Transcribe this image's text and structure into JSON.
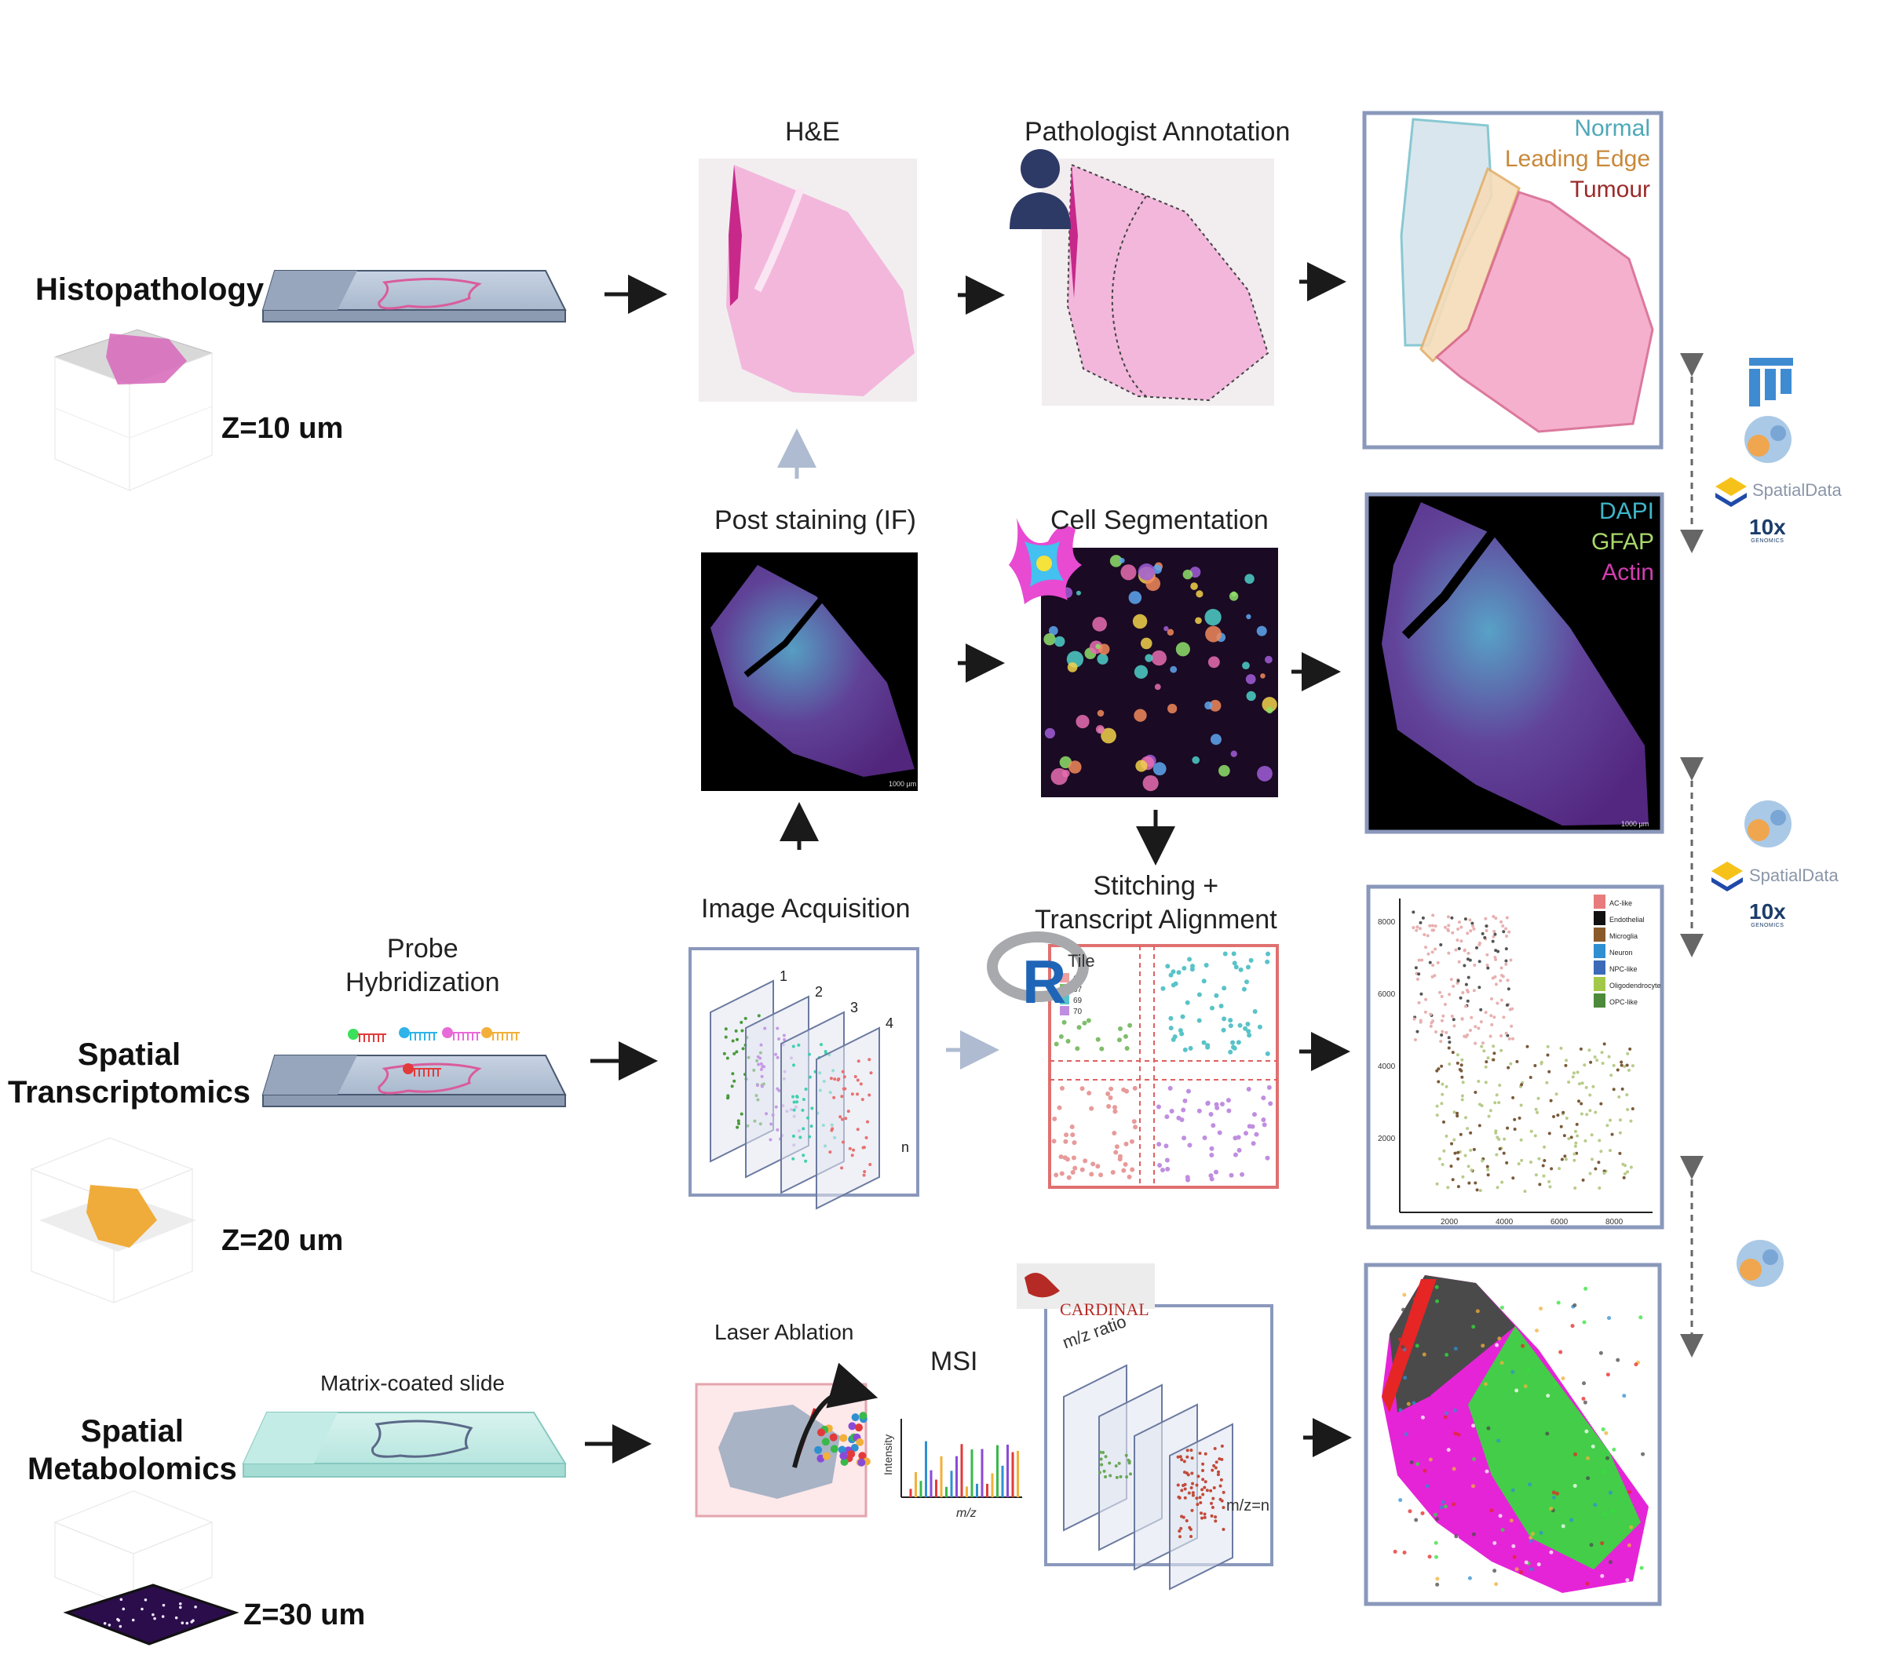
{
  "rows": {
    "histopathology": "Histopathology",
    "transcriptomics": "Spatial\nTranscriptomics",
    "metabolomics": "Spatial\nMetabolomics"
  },
  "z": {
    "histo": "Z=10 um",
    "trans": "Z=20 um",
    "metab": "Z=30 um"
  },
  "steps": {
    "he": "H&E",
    "pathologist": "Pathologist Annotation",
    "post_staining": "Post staining (IF)",
    "cell_seg": "Cell Segmentation",
    "probe": "Probe\nHybridization",
    "image_acq": "Image Acquisition",
    "stitching": "Stitching +\nTranscript Alignment",
    "matrix": "Matrix-coated slide",
    "laser": "Laser Ablation",
    "msi": "MSI"
  },
  "legend_histo": [
    {
      "text": "Normal",
      "color": "#4fa8b8"
    },
    {
      "text": "Leading Edge",
      "color": "#c8883a"
    },
    {
      "text": "Tumour",
      "color": "#9b2a2a"
    }
  ],
  "legend_if": [
    {
      "text": "DAPI",
      "color": "#3fb6c9"
    },
    {
      "text": "GFAP",
      "color": "#a8d86a"
    },
    {
      "text": "Actin",
      "color": "#d23fb0"
    }
  ],
  "acq_layers": [
    "1",
    "2",
    "3",
    "4",
    "n"
  ],
  "stitch_tile": {
    "title": "Tile",
    "items": [
      "66",
      "67",
      "69",
      "70"
    ]
  },
  "celltype_legend": [
    "AC-like",
    "Endothelial",
    "Microglia",
    "Neuron",
    "NPC-like",
    "Oligodendrocyte",
    "OPC-like"
  ],
  "celltype_colors": [
    "#e87c7c",
    "#111111",
    "#8b5a2b",
    "#2f8fd1",
    "#3a6ab8",
    "#a2c84a",
    "#4d8a3a"
  ],
  "celltype_axes": {
    "y_ticks": [
      "8000",
      "6000",
      "4000",
      "2000"
    ],
    "x_ticks": [
      "2000",
      "4000",
      "6000",
      "8000"
    ]
  },
  "msi_axes": {
    "x": "m/z",
    "y": "Intensity"
  },
  "mz_labels": {
    "ratio": "m/z ratio",
    "end": "m/z=n"
  },
  "cardinal": "CARDINAL",
  "scale_bar": "1000 µm",
  "tools": {
    "spatialdata": "SpatialData",
    "tenx": "10x",
    "tenx_sub": "GENOMICS"
  }
}
